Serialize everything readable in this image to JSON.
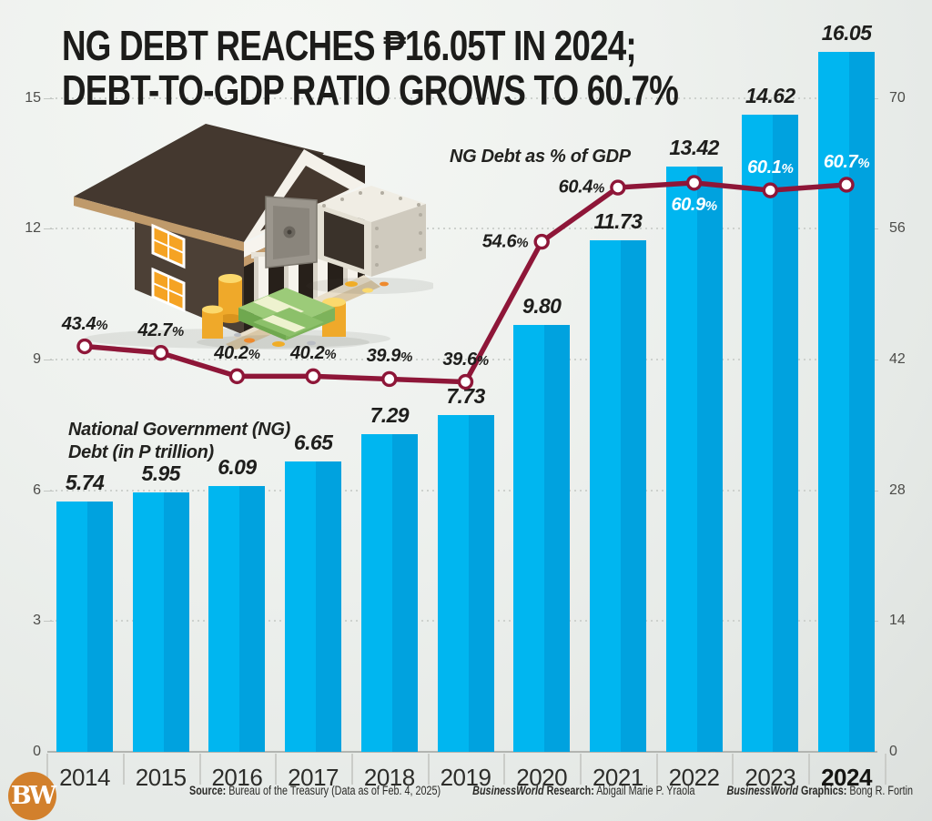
{
  "title": "NG DEBT REACHES ₱16.05T IN 2024;\nDEBT-TO-GDP RATIO GROWS TO 60.7%",
  "labels": {
    "bar_series": "National Government (NG)\nDebt (in P trillion)",
    "line_series": "NG Debt as % of GDP"
  },
  "chart_data": {
    "type": "bar+line",
    "categories": [
      "2014",
      "2015",
      "2016",
      "2017",
      "2018",
      "2019",
      "2020",
      "2021",
      "2022",
      "2023",
      "2024"
    ],
    "emphasized_category": "2024",
    "series": [
      {
        "name": "National Government (NG) Debt (in P trillion)",
        "type": "bar",
        "axis": "left",
        "values": [
          5.74,
          5.95,
          6.09,
          6.65,
          7.29,
          7.73,
          9.8,
          11.73,
          13.42,
          14.62,
          16.05
        ],
        "value_labels": [
          "5.74",
          "5.95",
          "6.09",
          "6.65",
          "7.29",
          "7.73",
          "9.80",
          "11.73",
          "13.42",
          "14.62",
          "16.05"
        ]
      },
      {
        "name": "NG Debt as % of GDP",
        "type": "line",
        "axis": "right",
        "values": [
          43.4,
          42.7,
          40.2,
          40.2,
          39.9,
          39.6,
          54.6,
          60.4,
          60.9,
          60.1,
          60.7
        ],
        "value_labels": [
          "43.4%",
          "42.7%",
          "40.2%",
          "40.2%",
          "39.9%",
          "39.6%",
          "54.6%",
          "60.4%",
          "60.9%",
          "60.1%",
          "60.7%"
        ],
        "label_placement": [
          "above",
          "above",
          "above",
          "above",
          "above",
          "above",
          "left",
          "left",
          "below",
          "above",
          "above"
        ],
        "label_color": [
          "dark",
          "dark",
          "dark",
          "dark",
          "dark",
          "dark",
          "dark",
          "dark",
          "white",
          "white",
          "white"
        ]
      }
    ],
    "left_axis": {
      "ticks": [
        0,
        3,
        6,
        9,
        12,
        15
      ],
      "range": [
        0,
        15.4
      ]
    },
    "right_axis": {
      "ticks": [
        0,
        14,
        28,
        42,
        56,
        70
      ],
      "range": [
        0,
        70
      ]
    },
    "grid": "dotted horizontal gridlines",
    "legend_position": "inline series annotations"
  },
  "footer": {
    "source_label": "Source:",
    "source_text": " Bureau of the Treasury (Data as of Feb. 4, 2025)",
    "research_brand": "BusinessWorld",
    "research_label": " Research:",
    "research_text": " Abigail Marie P. Yraola",
    "graphics_brand": "BusinessWorld",
    "graphics_label": " Graphics:",
    "graphics_text": " Bong R. Fortin"
  },
  "logo": {
    "text": "BW"
  },
  "colors": {
    "bar": "#00b6f0",
    "bar_shade": "#00a2df",
    "line": "#8e1638",
    "marker_fill": "#ffffff",
    "title_text": "#1c1c1a",
    "label_dark": "#1e1e1c",
    "label_white": "#ffffff",
    "axis_text": "#4c4c49",
    "grid": "#cdd1cd",
    "baseline": "#b2b5b1",
    "logo_bg": "#d2802c"
  }
}
